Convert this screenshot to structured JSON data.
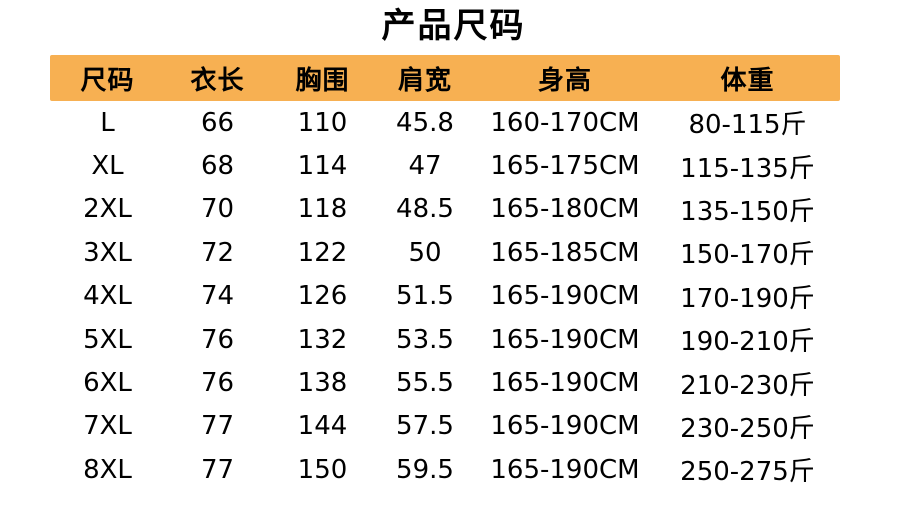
{
  "title": "产品尺码",
  "accent_color": "#F7B052",
  "chart_data": {
    "type": "table",
    "title": "产品尺码",
    "columns": [
      "尺码",
      "衣长",
      "胸围",
      "肩宽",
      "身高",
      "体重"
    ],
    "rows": [
      [
        "L",
        "66",
        "110",
        "45.8",
        "160-170CM",
        "80-115斤"
      ],
      [
        "XL",
        "68",
        "114",
        "47",
        "165-175CM",
        "115-135斤"
      ],
      [
        "2XL",
        "70",
        "118",
        "48.5",
        "165-180CM",
        "135-150斤"
      ],
      [
        "3XL",
        "72",
        "122",
        "50",
        "165-185CM",
        "150-170斤"
      ],
      [
        "4XL",
        "74",
        "126",
        "51.5",
        "165-190CM",
        "170-190斤"
      ],
      [
        "5XL",
        "76",
        "132",
        "53.5",
        "165-190CM",
        "190-210斤"
      ],
      [
        "6XL",
        "76",
        "138",
        "55.5",
        "165-190CM",
        "210-230斤"
      ],
      [
        "7XL",
        "77",
        "144",
        "57.5",
        "165-190CM",
        "230-250斤"
      ],
      [
        "8XL",
        "77",
        "150",
        "59.5",
        "165-190CM",
        "250-275斤"
      ]
    ]
  }
}
